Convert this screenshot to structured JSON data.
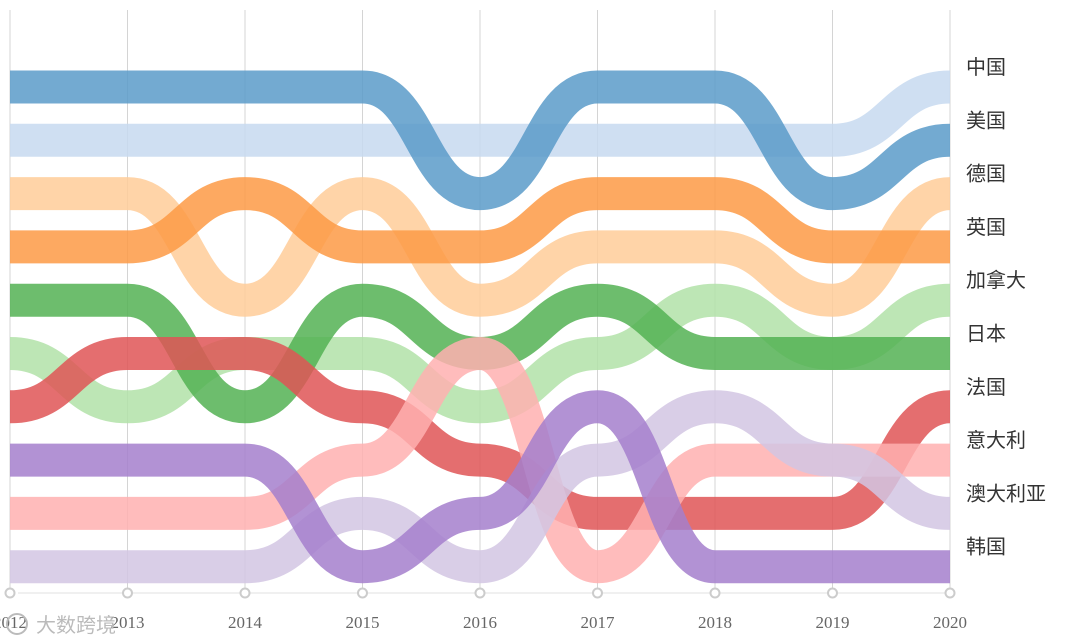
{
  "chart_data": {
    "type": "area",
    "subtype": "rank-bump-stream",
    "title": "",
    "xlabel": "",
    "ylabel": "",
    "grid": true,
    "legend": "right",
    "x": [
      "2012",
      "2013",
      "2014",
      "2015",
      "2016",
      "2017",
      "2018",
      "2019",
      "2020"
    ],
    "rank_range": [
      1,
      10
    ],
    "series": [
      {
        "name": "中国",
        "color": "#c7d9f0",
        "ranks": [
          2,
          2,
          2,
          2,
          2,
          2,
          2,
          2,
          1
        ]
      },
      {
        "name": "美国",
        "color": "#5b9bc9",
        "ranks": [
          1,
          1,
          1,
          1,
          3,
          1,
          1,
          3,
          2
        ]
      },
      {
        "name": "德国",
        "color": "#ffcc99",
        "ranks": [
          3,
          3,
          5,
          3,
          5,
          4,
          4,
          5,
          3
        ]
      },
      {
        "name": "英国",
        "color": "#fd9a45",
        "ranks": [
          4,
          4,
          3,
          4,
          4,
          3,
          3,
          4,
          4
        ]
      },
      {
        "name": "加拿大",
        "color": "#b2e2a8",
        "ranks": [
          6,
          7,
          6,
          6,
          7,
          6,
          5,
          6,
          5
        ]
      },
      {
        "name": "日本",
        "color": "#54b153",
        "ranks": [
          5,
          5,
          7,
          5,
          6,
          5,
          6,
          6,
          6
        ]
      },
      {
        "name": "法国",
        "color": "#df5556",
        "ranks": [
          7,
          6,
          6,
          7,
          8,
          9,
          9,
          9,
          7
        ]
      },
      {
        "name": "意大利",
        "color": "#ffb0b0",
        "ranks": [
          9,
          9,
          9,
          8,
          6,
          10,
          8,
          8,
          8
        ]
      },
      {
        "name": "澳大利亚",
        "color": "#d2c6e3",
        "ranks": [
          10,
          10,
          10,
          9,
          10,
          8,
          7,
          8,
          9
        ]
      },
      {
        "name": "韩国",
        "color": "#a57fcc",
        "ranks": [
          8,
          8,
          8,
          10,
          9,
          7,
          10,
          10,
          10
        ]
      }
    ]
  },
  "watermark": "大数跨境"
}
